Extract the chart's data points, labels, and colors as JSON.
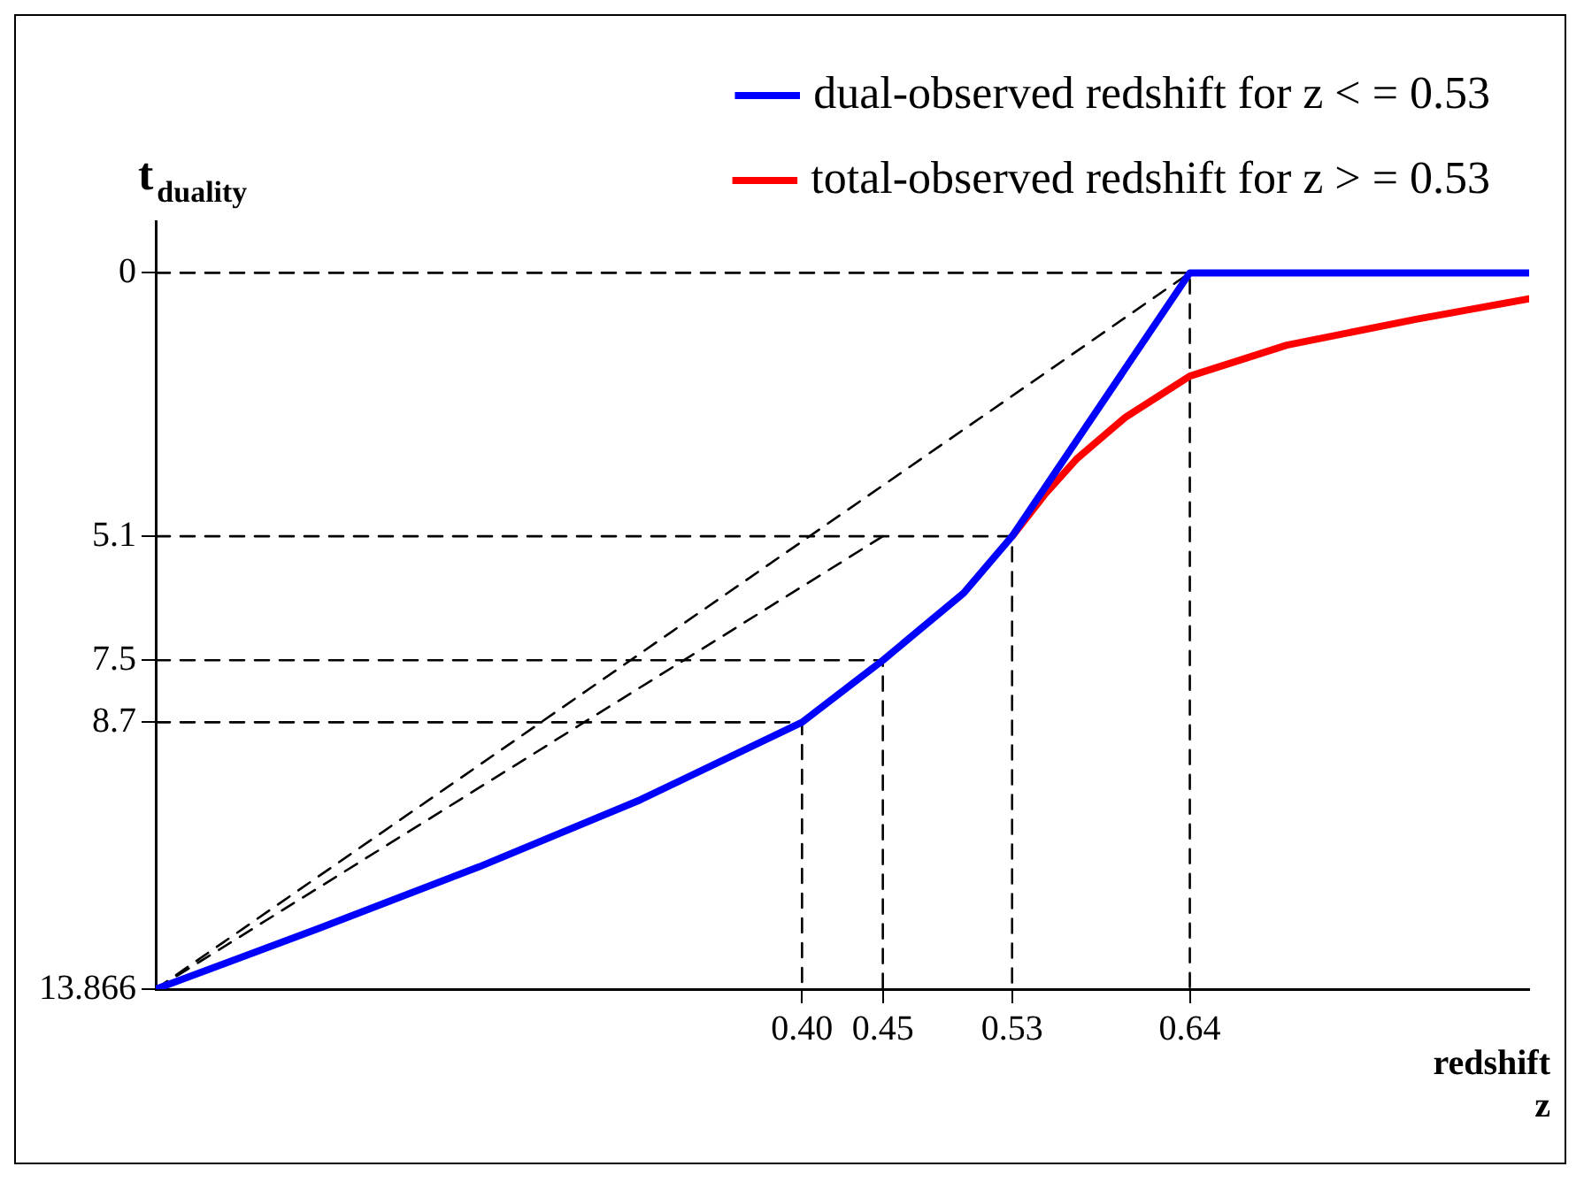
{
  "chart_data": {
    "type": "line",
    "xlabel": "redshift z",
    "ylabel": "t$_{duality}$",
    "xlim": [
      0,
      0.85
    ],
    "ylim": [
      13.866,
      -1
    ],
    "xticks": [
      {
        "value": 0.4,
        "label": "0.40"
      },
      {
        "value": 0.45,
        "label": "0.45"
      },
      {
        "value": 0.53,
        "label": "0.53"
      },
      {
        "value": 0.64,
        "label": "0.64"
      }
    ],
    "yticks": [
      0,
      5.1,
      7.5,
      8.7,
      13.866
    ],
    "grid": false,
    "legend": "top right",
    "marker": "none",
    "series": [
      {
        "name": "dual-observed redshift for z < = 0.53",
        "color": "#0000ff",
        "line_style": "solid",
        "x": [
          0,
          0.1,
          0.2,
          0.3,
          0.4,
          0.45,
          0.5,
          0.53,
          0.64,
          0.85
        ],
        "values": [
          13.866,
          12.7,
          11.5,
          10.2,
          8.7,
          7.5,
          6.2,
          5.1,
          0,
          0
        ]
      },
      {
        "name": "total-observed redshift for z > = 0.53",
        "color": "#ff0000",
        "line_style": "solid",
        "x": [
          0.53,
          0.55,
          0.57,
          0.6,
          0.64,
          0.7,
          0.78,
          0.85
        ],
        "values": [
          5.1,
          4.3,
          3.6,
          2.8,
          2.0,
          1.4,
          0.9,
          0.5
        ]
      },
      {
        "color": "#000000",
        "line_style": "dashed",
        "x": [
          0,
          0.64,
          0.64
        ],
        "values": [
          0,
          0,
          13.866
        ]
      },
      {
        "color": "#000000",
        "line_style": "dashed",
        "x": [
          0,
          0.53,
          0.53
        ],
        "values": [
          5.1,
          5.1,
          13.866
        ]
      },
      {
        "color": "#000000",
        "line_style": "dashed",
        "x": [
          0,
          0.45,
          0.45
        ],
        "values": [
          7.5,
          7.5,
          13.866
        ]
      },
      {
        "color": "#000000",
        "line_style": "dashed",
        "x": [
          0,
          0.4,
          0.4
        ],
        "values": [
          8.7,
          8.7,
          13.866
        ]
      },
      {
        "color": "#000000",
        "line_style": "dashed",
        "x": [
          0,
          0.64
        ],
        "values": [
          13.866,
          0
        ]
      },
      {
        "color": "#000000",
        "line_style": "dashed",
        "x": [
          0,
          0.45
        ],
        "values": [
          13.866,
          5.1
        ]
      }
    ]
  }
}
